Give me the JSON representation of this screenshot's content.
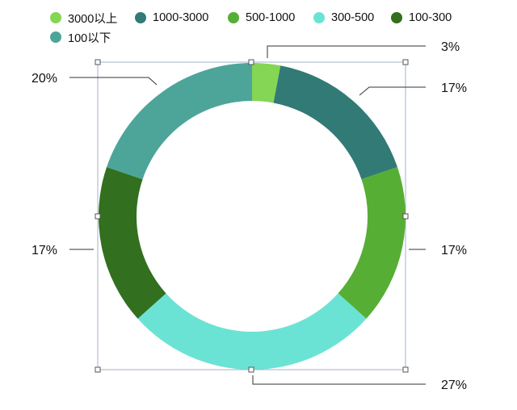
{
  "chart_data": {
    "type": "pie",
    "donut": true,
    "legend_position": "top-left",
    "categories": [
      "3000以上",
      "1000-3000",
      "500-1000",
      "300-500",
      "100-300",
      "100以下"
    ],
    "values": [
      3,
      17,
      17,
      27,
      17,
      20
    ],
    "value_labels": [
      "3%",
      "17%",
      "17%",
      "27%",
      "17%",
      "20%"
    ],
    "colors": [
      "#84d654",
      "#327a75",
      "#56ae35",
      "#6be3d4",
      "#326f1e",
      "#4da59a"
    ],
    "selection_frame_shown": true
  }
}
